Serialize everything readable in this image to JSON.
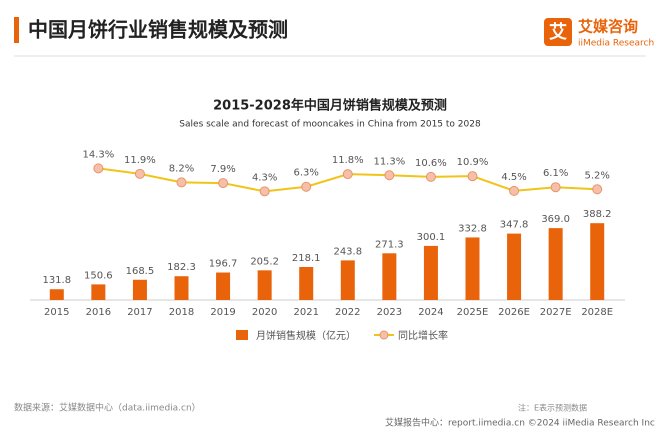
{
  "header": {
    "title": "中国月饼行业销售规模及预测",
    "logo": "艾媒咨询",
    "logo_sub": "iiMedia Research"
  },
  "chart_data": {
    "type": "bar",
    "title": "2015-2028年中国月饼销售规模及预测",
    "subtitle": "Sales scale and forecast of mooncakes in China from 2015 to 2028",
    "categories": [
      "2015",
      "2016",
      "2017",
      "2018",
      "2019",
      "2020",
      "2021",
      "2022",
      "2023",
      "2024",
      "2025E",
      "2026E",
      "2027E",
      "2028E"
    ],
    "series": [
      {
        "name": "月饼销售规模（亿元）",
        "type": "bar",
        "color": "#e8630a",
        "values": [
          131.8,
          150.6,
          168.5,
          182.3,
          196.7,
          205.2,
          218.1,
          243.8,
          271.3,
          300.1,
          332.8,
          347.8,
          369.0,
          388.2
        ],
        "value_labels": [
          "131.8",
          "150.6",
          "168.5",
          "182.3",
          "196.7",
          "205.2",
          "218.1",
          "243.8",
          "271.3",
          "300.1",
          "332.8",
          "347.8",
          "369.0",
          "388.2"
        ]
      },
      {
        "name": "同比增长率",
        "type": "line",
        "axis": "y2",
        "color": "#f0c419",
        "values": [
          null,
          14.3,
          11.9,
          8.2,
          7.9,
          4.3,
          6.3,
          11.8,
          11.3,
          10.6,
          10.9,
          4.5,
          6.1,
          5.2
        ],
        "value_labels": [
          null,
          "14.3%",
          "11.9%",
          "8.2%",
          "7.9%",
          "4.3%",
          "6.3%",
          "11.8%",
          "11.3%",
          "10.6%",
          "10.9%",
          "4.5%",
          "6.1%",
          "5.2%"
        ]
      }
    ],
    "ylim": [
      90,
      750
    ],
    "y2lim": [
      -43,
      31
    ],
    "legend": "bottom"
  },
  "footer": {
    "source": "数据来源：艾媒数据中心（data.iimedia.cn）",
    "note": "注：E表示预测数据",
    "report": "艾媒报告中心：report.iimedia.cn ©2024 iiMedia Research Inc"
  }
}
